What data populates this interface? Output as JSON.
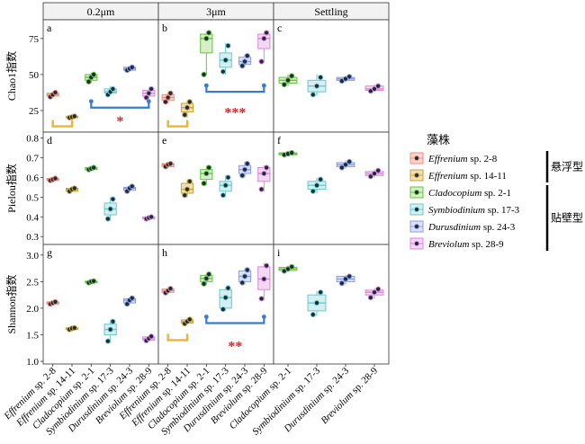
{
  "strip_titles": [
    "0.2μm",
    "3μm",
    "Settling"
  ],
  "rows": [
    {
      "ylabel": "Chao1指数",
      "ylim": [
        10,
        88
      ],
      "ticks": [
        25,
        50,
        75
      ],
      "tick_labels": [
        "25",
        "50",
        "75"
      ]
    },
    {
      "ylabel": "Pielou指数",
      "ylim": [
        0.26,
        0.83
      ],
      "ticks": [
        0.3,
        0.4,
        0.5,
        0.6,
        0.7,
        0.8
      ],
      "tick_labels": [
        "0.3",
        "0.4",
        "0.5",
        "0.6",
        "0.7",
        "0.8"
      ]
    },
    {
      "ylabel": "Shannon指数",
      "ylim": [
        0.95,
        3.2
      ],
      "ticks": [
        1.0,
        1.5,
        2.0,
        2.5,
        3.0
      ],
      "tick_labels": [
        "1.0",
        "1.5",
        "2.0",
        "2.5",
        "3.0"
      ]
    }
  ],
  "x_labels": {
    "0": [
      {
        "genus": "Effrenium",
        "suffix": " sp. 2-8"
      },
      {
        "genus": "Effrenium",
        "suffix": " sp. 14-11"
      },
      {
        "genus": "Cladocopium",
        "suffix": " sp. 2-1"
      },
      {
        "genus": "Symbiodinium",
        "suffix": " sp. 17-3"
      },
      {
        "genus": "Durusdinium",
        "suffix": " sp. 24-3"
      },
      {
        "genus": "Breviolum",
        "suffix": " sp. 28-9"
      }
    ],
    "1": [
      {
        "genus": "Effrenium",
        "suffix": " sp. 2-8"
      },
      {
        "genus": "Effrenium",
        "suffix": " sp. 14-11"
      },
      {
        "genus": "Cladocopium",
        "suffix": " sp. 2-1"
      },
      {
        "genus": "Symbiodinium",
        "suffix": " sp. 17-3"
      },
      {
        "genus": "Durusdinium",
        "suffix": " sp. 24-3"
      },
      {
        "genus": "Breviolum",
        "suffix": " sp. 28-9"
      }
    ],
    "2": [
      {
        "genus": "Cladocopium",
        "suffix": " sp. 2-1"
      },
      {
        "genus": "Symbiodinium",
        "suffix": " sp. 17-3"
      },
      {
        "genus": "Durusdinium",
        "suffix": " sp. 24-3"
      },
      {
        "genus": "Breviolum",
        "suffix": " sp. 28-9"
      }
    ]
  },
  "legend": {
    "title": "藻株",
    "items": [
      {
        "genus": "Effrenium",
        "suffix": " sp. 2-8",
        "color": "#f08a78",
        "fill": "#fbd9d1"
      },
      {
        "genus": "Effrenium",
        "suffix": " sp. 14-11",
        "color": "#c9a23b",
        "fill": "#efe0b4"
      },
      {
        "genus": "Cladocopium",
        "suffix": " sp. 2-1",
        "color": "#6cc04a",
        "fill": "#d5efc7"
      },
      {
        "genus": "Symbiodinium",
        "suffix": " sp. 17-3",
        "color": "#6fc7cc",
        "fill": "#d3eff0"
      },
      {
        "genus": "Durusdinium",
        "suffix": " sp. 24-3",
        "color": "#8a9de0",
        "fill": "#dce2f7"
      },
      {
        "genus": "Breviolum",
        "suffix": " sp. 28-9",
        "color": "#d88ad8",
        "fill": "#f3d7f3"
      }
    ],
    "groups": [
      {
        "label": "悬浮型",
        "from": 0,
        "to": 1
      },
      {
        "label": "贴壁型",
        "from": 2,
        "to": 5
      }
    ]
  },
  "chart_data": [
    {
      "type": "box",
      "panel": "a",
      "facet": "0.2μm",
      "metric": "Chao1指数",
      "boxes": [
        {
          "strain": 0,
          "q1": 35,
          "med": 36,
          "q3": 37,
          "min": 34,
          "max": 38,
          "points": [
            34.5,
            36,
            37.5
          ]
        },
        {
          "strain": 1,
          "q1": 20,
          "med": 20.5,
          "q3": 21,
          "min": 19.5,
          "max": 21.5,
          "points": [
            20,
            20.5,
            21
          ]
        },
        {
          "strain": 2,
          "q1": 46,
          "med": 48,
          "q3": 50,
          "min": 44,
          "max": 51,
          "points": [
            45,
            48,
            50
          ]
        },
        {
          "strain": 3,
          "q1": 37,
          "med": 38,
          "q3": 40,
          "min": 36,
          "max": 42,
          "points": [
            36,
            38,
            40
          ]
        },
        {
          "strain": 4,
          "q1": 53,
          "med": 54,
          "q3": 55,
          "min": 52,
          "max": 56,
          "points": [
            53,
            54,
            55
          ]
        },
        {
          "strain": 5,
          "q1": 35,
          "med": 37,
          "q3": 39,
          "min": 33,
          "max": 41,
          "points": [
            34,
            37,
            40
          ]
        }
      ],
      "brackets": [
        {
          "from": 0,
          "to": 1,
          "y": 14,
          "color": "#f0b233",
          "style": "cup"
        },
        {
          "from": 2,
          "to": 5,
          "y": 27,
          "color": "#3a7cc7",
          "style": "dot"
        }
      ],
      "stars": [
        {
          "text": "*",
          "x": 3.5,
          "y": 18
        }
      ]
    },
    {
      "type": "box",
      "panel": "b",
      "facet": "3μm",
      "metric": "Chao1指数",
      "boxes": [
        {
          "strain": 0,
          "q1": 32,
          "med": 34,
          "q3": 36,
          "min": 30,
          "max": 38,
          "points": [
            31,
            34,
            37
          ]
        },
        {
          "strain": 1,
          "q1": 24,
          "med": 27,
          "q3": 30,
          "min": 20,
          "max": 32,
          "points": [
            22,
            27,
            31
          ]
        },
        {
          "strain": 2,
          "q1": 65,
          "med": 75,
          "q3": 78,
          "min": 50,
          "max": 80,
          "points": [
            50,
            75,
            79
          ]
        },
        {
          "strain": 3,
          "q1": 55,
          "med": 60,
          "q3": 65,
          "min": 50,
          "max": 72,
          "points": [
            52,
            60,
            70
          ]
        },
        {
          "strain": 4,
          "q1": 57,
          "med": 59,
          "q3": 62,
          "min": 55,
          "max": 64,
          "points": [
            56,
            59,
            63
          ]
        },
        {
          "strain": 5,
          "q1": 68,
          "med": 75,
          "q3": 78,
          "min": 58,
          "max": 80,
          "points": [
            59,
            75,
            79
          ]
        }
      ],
      "brackets": [
        {
          "from": 0,
          "to": 1,
          "y": 14,
          "color": "#f0b233",
          "style": "cup"
        },
        {
          "from": 2,
          "to": 5,
          "y": 38,
          "color": "#3a7cc7",
          "style": "dot"
        }
      ],
      "stars": [
        {
          "text": "***",
          "x": 3.5,
          "y": 24
        }
      ]
    },
    {
      "type": "box",
      "panel": "c",
      "facet": "Settling",
      "metric": "Chao1指数",
      "boxes": [
        {
          "strain": 2,
          "q1": 44,
          "med": 46,
          "q3": 48,
          "min": 42,
          "max": 50,
          "points": [
            43,
            46,
            49
          ]
        },
        {
          "strain": 3,
          "q1": 38,
          "med": 42,
          "q3": 46,
          "min": 35,
          "max": 50,
          "points": [
            36,
            42,
            48
          ]
        },
        {
          "strain": 4,
          "q1": 46,
          "med": 47,
          "q3": 48,
          "min": 45,
          "max": 49,
          "points": [
            45.5,
            47,
            48.5
          ]
        },
        {
          "strain": 5,
          "q1": 39,
          "med": 40,
          "q3": 42,
          "min": 38,
          "max": 43,
          "points": [
            38.5,
            40,
            42
          ]
        }
      ],
      "brackets": [],
      "stars": []
    },
    {
      "type": "box",
      "panel": "d",
      "facet": "0.2μm",
      "metric": "Pielou指数",
      "boxes": [
        {
          "strain": 0,
          "q1": 0.585,
          "med": 0.59,
          "q3": 0.595,
          "min": 0.58,
          "max": 0.6,
          "points": [
            0.585,
            0.59,
            0.595
          ]
        },
        {
          "strain": 1,
          "q1": 0.53,
          "med": 0.54,
          "q3": 0.545,
          "min": 0.525,
          "max": 0.55,
          "points": [
            0.53,
            0.54,
            0.545
          ]
        },
        {
          "strain": 2,
          "q1": 0.64,
          "med": 0.645,
          "q3": 0.65,
          "min": 0.635,
          "max": 0.655,
          "points": [
            0.64,
            0.645,
            0.65
          ]
        },
        {
          "strain": 3,
          "q1": 0.41,
          "med": 0.44,
          "q3": 0.47,
          "min": 0.38,
          "max": 0.5,
          "points": [
            0.39,
            0.44,
            0.49
          ]
        },
        {
          "strain": 4,
          "q1": 0.535,
          "med": 0.545,
          "q3": 0.55,
          "min": 0.525,
          "max": 0.56,
          "points": [
            0.53,
            0.545,
            0.555
          ]
        },
        {
          "strain": 5,
          "q1": 0.39,
          "med": 0.395,
          "q3": 0.4,
          "min": 0.385,
          "max": 0.405,
          "points": [
            0.39,
            0.395,
            0.4
          ]
        }
      ],
      "brackets": [],
      "stars": []
    },
    {
      "type": "box",
      "panel": "e",
      "facet": "3μm",
      "metric": "Pielou指数",
      "boxes": [
        {
          "strain": 0,
          "q1": 0.655,
          "med": 0.665,
          "q3": 0.67,
          "min": 0.645,
          "max": 0.675,
          "points": [
            0.655,
            0.665,
            0.67
          ]
        },
        {
          "strain": 1,
          "q1": 0.52,
          "med": 0.54,
          "q3": 0.57,
          "min": 0.5,
          "max": 0.59,
          "points": [
            0.51,
            0.54,
            0.58
          ]
        },
        {
          "strain": 2,
          "q1": 0.59,
          "med": 0.62,
          "q3": 0.64,
          "min": 0.56,
          "max": 0.66,
          "points": [
            0.57,
            0.62,
            0.65
          ]
        },
        {
          "strain": 3,
          "q1": 0.53,
          "med": 0.56,
          "q3": 0.58,
          "min": 0.5,
          "max": 0.61,
          "points": [
            0.51,
            0.56,
            0.6
          ]
        },
        {
          "strain": 4,
          "q1": 0.62,
          "med": 0.64,
          "q3": 0.66,
          "min": 0.6,
          "max": 0.68,
          "points": [
            0.61,
            0.64,
            0.67
          ]
        },
        {
          "strain": 5,
          "q1": 0.58,
          "med": 0.62,
          "q3": 0.65,
          "min": 0.53,
          "max": 0.66,
          "points": [
            0.54,
            0.62,
            0.65
          ]
        }
      ],
      "brackets": [],
      "stars": []
    },
    {
      "type": "box",
      "panel": "f",
      "facet": "Settling",
      "metric": "Pielou指数",
      "boxes": [
        {
          "strain": 2,
          "q1": 0.715,
          "med": 0.72,
          "q3": 0.725,
          "min": 0.71,
          "max": 0.73,
          "points": [
            0.715,
            0.72,
            0.725
          ]
        },
        {
          "strain": 3,
          "q1": 0.54,
          "med": 0.56,
          "q3": 0.58,
          "min": 0.52,
          "max": 0.6,
          "points": [
            0.53,
            0.56,
            0.59
          ]
        },
        {
          "strain": 4,
          "q1": 0.655,
          "med": 0.665,
          "q3": 0.675,
          "min": 0.645,
          "max": 0.685,
          "points": [
            0.65,
            0.665,
            0.68
          ]
        },
        {
          "strain": 5,
          "q1": 0.61,
          "med": 0.62,
          "q3": 0.63,
          "min": 0.6,
          "max": 0.64,
          "points": [
            0.605,
            0.62,
            0.635
          ]
        }
      ],
      "brackets": [],
      "stars": []
    },
    {
      "type": "box",
      "panel": "g",
      "facet": "0.2μm",
      "metric": "Shannon指数",
      "boxes": [
        {
          "strain": 0,
          "q1": 2.08,
          "med": 2.1,
          "q3": 2.12,
          "min": 2.06,
          "max": 2.14,
          "points": [
            2.08,
            2.1,
            2.12
          ]
        },
        {
          "strain": 1,
          "q1": 1.6,
          "med": 1.62,
          "q3": 1.63,
          "min": 1.59,
          "max": 1.64,
          "points": [
            1.6,
            1.62,
            1.63
          ]
        },
        {
          "strain": 2,
          "q1": 2.48,
          "med": 2.5,
          "q3": 2.51,
          "min": 2.47,
          "max": 2.52,
          "points": [
            2.48,
            2.5,
            2.51
          ]
        },
        {
          "strain": 3,
          "q1": 1.5,
          "med": 1.6,
          "q3": 1.7,
          "min": 1.35,
          "max": 1.78,
          "points": [
            1.38,
            1.6,
            1.75
          ]
        },
        {
          "strain": 4,
          "q1": 2.1,
          "med": 2.15,
          "q3": 2.18,
          "min": 2.06,
          "max": 2.2,
          "points": [
            2.08,
            2.15,
            2.19
          ]
        },
        {
          "strain": 5,
          "q1": 1.4,
          "med": 1.43,
          "q3": 1.46,
          "min": 1.37,
          "max": 1.48,
          "points": [
            1.39,
            1.43,
            1.47
          ]
        }
      ],
      "brackets": [],
      "stars": []
    },
    {
      "type": "box",
      "panel": "h",
      "facet": "3μm",
      "metric": "Shannon指数",
      "boxes": [
        {
          "strain": 0,
          "q1": 2.3,
          "med": 2.33,
          "q3": 2.36,
          "min": 2.27,
          "max": 2.38,
          "points": [
            2.29,
            2.33,
            2.37
          ]
        },
        {
          "strain": 1,
          "q1": 1.72,
          "med": 1.75,
          "q3": 1.78,
          "min": 1.7,
          "max": 1.8,
          "points": [
            1.71,
            1.75,
            1.79
          ]
        },
        {
          "strain": 2,
          "q1": 2.5,
          "med": 2.56,
          "q3": 2.62,
          "min": 2.44,
          "max": 2.66,
          "points": [
            2.46,
            2.56,
            2.64
          ]
        },
        {
          "strain": 3,
          "q1": 2.0,
          "med": 2.2,
          "q3": 2.35,
          "min": 1.95,
          "max": 2.4,
          "points": [
            1.98,
            2.2,
            2.38
          ]
        },
        {
          "strain": 4,
          "q1": 2.5,
          "med": 2.6,
          "q3": 2.7,
          "min": 2.45,
          "max": 2.75,
          "points": [
            2.48,
            2.6,
            2.72
          ]
        },
        {
          "strain": 5,
          "q1": 2.35,
          "med": 2.55,
          "q3": 2.78,
          "min": 2.15,
          "max": 2.85,
          "points": [
            2.18,
            2.55,
            2.8
          ]
        }
      ],
      "brackets": [
        {
          "from": 0,
          "to": 1,
          "y": 1.4,
          "color": "#f0b233",
          "style": "cup"
        },
        {
          "from": 2,
          "to": 5,
          "y": 1.72,
          "color": "#3a7cc7",
          "style": "dot"
        }
      ],
      "stars": [
        {
          "text": "**",
          "x": 3.5,
          "y": 1.3
        }
      ]
    },
    {
      "type": "box",
      "panel": "i",
      "facet": "Settling",
      "metric": "Shannon指数",
      "boxes": [
        {
          "strain": 2,
          "q1": 2.71,
          "med": 2.74,
          "q3": 2.77,
          "min": 2.68,
          "max": 2.8,
          "points": [
            2.7,
            2.74,
            2.78
          ]
        },
        {
          "strain": 3,
          "q1": 1.95,
          "med": 2.1,
          "q3": 2.25,
          "min": 1.85,
          "max": 2.32,
          "points": [
            1.88,
            2.1,
            2.3
          ]
        },
        {
          "strain": 4,
          "q1": 2.5,
          "med": 2.55,
          "q3": 2.6,
          "min": 2.45,
          "max": 2.62,
          "points": [
            2.47,
            2.55,
            2.6
          ]
        },
        {
          "strain": 5,
          "q1": 2.25,
          "med": 2.3,
          "q3": 2.34,
          "min": 2.18,
          "max": 2.38,
          "points": [
            2.2,
            2.3,
            2.36
          ]
        }
      ],
      "brackets": [],
      "stars": []
    }
  ]
}
